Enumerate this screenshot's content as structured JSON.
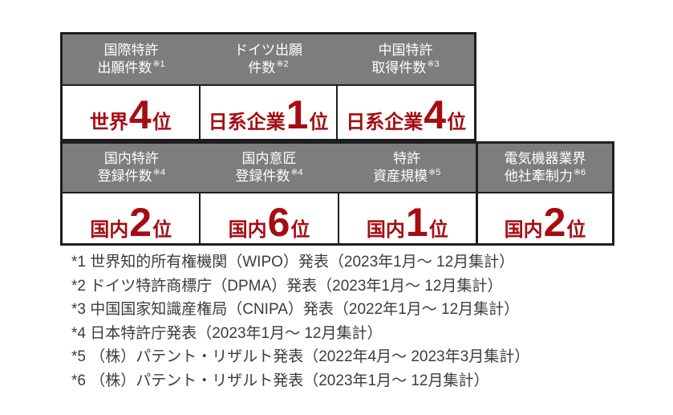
{
  "colors": {
    "header_bg": "#7d7d7d",
    "header_text": "#ffffff",
    "rank_red": "#a40d12",
    "border_dark": "#1e1e1e",
    "footnote_text": "#3c3c3c",
    "page_bg": "#ffffff"
  },
  "top_section": {
    "columns": [
      {
        "header_line1": "国際特許",
        "header_line2": "出願件数",
        "header_sup": "※1",
        "rank_prefix": "世界",
        "rank_number": "4",
        "rank_suffix": "位"
      },
      {
        "header_line1": "ドイツ出願",
        "header_line2": "件数",
        "header_sup": "※2",
        "rank_prefix": "日系企業",
        "rank_number": "1",
        "rank_suffix": "位"
      },
      {
        "header_line1": "中国特許",
        "header_line2": "取得件数",
        "header_sup": "※3",
        "rank_prefix": "日系企業",
        "rank_number": "4",
        "rank_suffix": "位"
      }
    ]
  },
  "bottom_section": {
    "columns": [
      {
        "header_line1": "国内特許",
        "header_line2": "登録件数",
        "header_sup": "※4",
        "rank_prefix": "国内",
        "rank_number": "2",
        "rank_suffix": "位"
      },
      {
        "header_line1": "国内意匠",
        "header_line2": "登録件数",
        "header_sup": "※4",
        "rank_prefix": "国内",
        "rank_number": "6",
        "rank_suffix": "位"
      },
      {
        "header_line1": "特許",
        "header_line2": "資産規模",
        "header_sup": "※5",
        "rank_prefix": "国内",
        "rank_number": "1",
        "rank_suffix": "位"
      },
      {
        "header_line1": "電気機器業界",
        "header_line2": "他社牽制力",
        "header_sup": "※6",
        "rank_prefix": "国内",
        "rank_number": "2",
        "rank_suffix": "位"
      }
    ]
  },
  "footnotes": [
    "*1 世界知的所有権機関（WIPO）発表（2023年1月～ 12月集計）",
    "*2 ドイツ特許商標庁（DPMA）発表（2023年1月～ 12月集計）",
    "*3 中国国家知識産権局（CNIPA）発表（2022年1月～ 12月集計）",
    "*4 日本特許庁発表（2023年1月～ 12月集計）",
    "*5 （株）パテント・リザルト発表（2022年4月～ 2023年3月集計）",
    "*6 （株）パテント・リザルト発表（2023年1月～ 12月集計）"
  ],
  "chart_data": {
    "type": "table",
    "title": "",
    "columns": [
      "metric",
      "note_ref",
      "scope",
      "rank"
    ],
    "items": [
      {
        "metric": "国際特許出願件数",
        "note_ref": "※1",
        "scope": "世界",
        "rank": 4
      },
      {
        "metric": "ドイツ出願件数",
        "note_ref": "※2",
        "scope": "日系企業",
        "rank": 1
      },
      {
        "metric": "中国特許取得件数",
        "note_ref": "※3",
        "scope": "日系企業",
        "rank": 4
      },
      {
        "metric": "国内特許登録件数",
        "note_ref": "※4",
        "scope": "国内",
        "rank": 2
      },
      {
        "metric": "国内意匠登録件数",
        "note_ref": "※4",
        "scope": "国内",
        "rank": 6
      },
      {
        "metric": "特許資産規模",
        "note_ref": "※5",
        "scope": "国内",
        "rank": 1
      },
      {
        "metric": "電気機器業界他社牽制力",
        "note_ref": "※6",
        "scope": "国内",
        "rank": 2
      }
    ]
  }
}
